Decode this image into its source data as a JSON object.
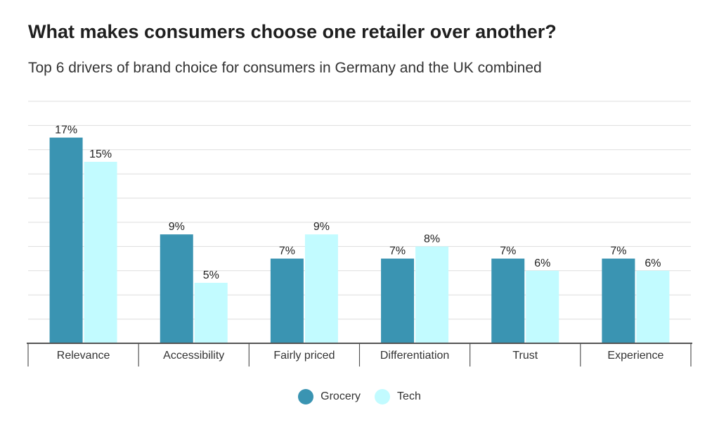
{
  "title": "What makes consumers choose one retailer over another?",
  "subtitle": "Top 6 drivers of brand choice for consumers in Germany and the UK combined",
  "colors": {
    "grocery": "#3a94b2",
    "tech": "#c2fbff",
    "grid": "#dddddd",
    "axis": "#555555"
  },
  "chart_data": {
    "type": "bar",
    "categories": [
      "Relevance",
      "Accessibility",
      "Fairly priced",
      "Differentiation",
      "Trust",
      "Experience"
    ],
    "series": [
      {
        "name": "Grocery",
        "values": [
          17,
          9,
          7,
          7,
          7,
          7
        ],
        "labels": [
          "17%",
          "9%",
          "7%",
          "7%",
          "7%",
          "7%"
        ]
      },
      {
        "name": "Tech",
        "values": [
          15,
          5,
          9,
          8,
          6,
          6
        ],
        "labels": [
          "15%",
          "5%",
          "9%",
          "8%",
          "6%",
          "6%"
        ]
      }
    ],
    "ylim": [
      0,
      20
    ],
    "xlabel": "",
    "ylabel": "",
    "grid": true,
    "legend": "bottom-center"
  }
}
